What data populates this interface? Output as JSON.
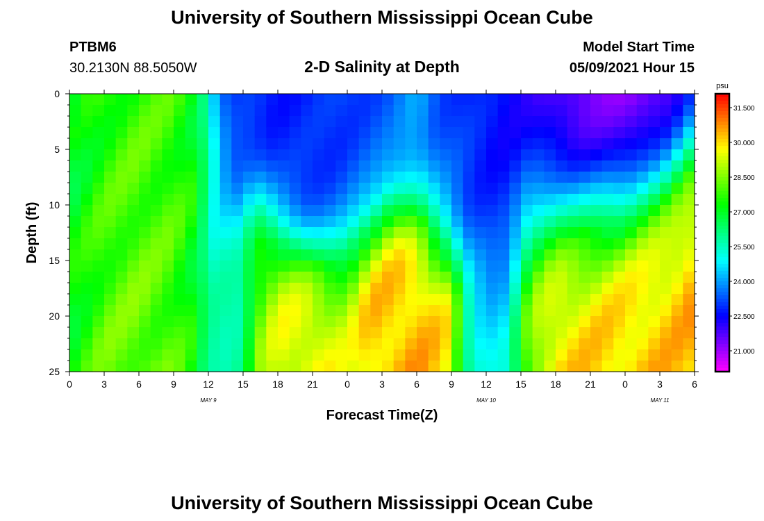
{
  "header": {
    "top_title": "University of Southern Mississippi Ocean Cube",
    "bottom_title": "University of Southern Mississippi Ocean Cube",
    "station_id": "PTBM6",
    "station_coords": "30.2130N  88.5050W",
    "plot_title": "2-D Salinity at Depth",
    "start_label": "Model Start Time",
    "start_value": "05/09/2021 Hour 15"
  },
  "chart_data": {
    "type": "heatmap",
    "title": "2-D Salinity at Depth",
    "xlabel": "Forecast Time(Z)",
    "ylabel": "Depth (ft)",
    "x_unit": "hours from 00Z May 9",
    "xlim": [
      0,
      54
    ],
    "ylim": [
      0,
      25
    ],
    "x_ticks": [
      0,
      3,
      6,
      9,
      12,
      15,
      18,
      21,
      24,
      27,
      30,
      33,
      36,
      39,
      42,
      45,
      48,
      51,
      54
    ],
    "x_tick_labels": [
      "0",
      "3",
      "6",
      "9",
      "12",
      "15",
      "18",
      "21",
      "0",
      "3",
      "6",
      "9",
      "12",
      "15",
      "18",
      "21",
      "0",
      "3",
      "6"
    ],
    "y_ticks": [
      0,
      5,
      10,
      15,
      20,
      25
    ],
    "y_tick_labels": [
      "0",
      "5",
      "10",
      "15",
      "20",
      "25"
    ],
    "date_labels": [
      {
        "x": 12,
        "text": "MAY 9"
      },
      {
        "x": 36,
        "text": "MAY 10"
      },
      {
        "x": 51,
        "text": "MAY 11"
      }
    ],
    "colorbar": {
      "unit": "psu",
      "min": 20.1,
      "max": 32.1,
      "tick_values": [
        31.5,
        30.0,
        28.5,
        27.0,
        25.5,
        24.0,
        22.5,
        21.0
      ],
      "tick_labels": [
        "31.500",
        "30.000",
        "28.500",
        "27.000",
        "25.500",
        "24.000",
        "22.500",
        "21.000"
      ]
    },
    "grid_steps": {
      "time_hours": 1,
      "depth_ft": 1
    },
    "top_layer": [
      [
        0,
        26.4
      ],
      [
        5,
        27.2
      ],
      [
        9,
        27.5
      ],
      [
        11,
        27.2
      ],
      [
        12,
        25.2
      ],
      [
        12.8,
        24.0
      ],
      [
        14,
        22.9
      ],
      [
        18,
        22.7
      ],
      [
        22,
        22.9
      ],
      [
        28,
        23.3
      ],
      [
        30,
        24.0
      ],
      [
        32,
        23.2
      ],
      [
        38,
        22.4
      ],
      [
        44,
        21.2
      ],
      [
        49,
        20.8
      ],
      [
        52,
        21.0
      ],
      [
        54,
        22.0
      ]
    ],
    "bottom_layer": [
      [
        0,
        27.7
      ],
      [
        3,
        28.9
      ],
      [
        6,
        29.0
      ],
      [
        9,
        28.3
      ],
      [
        10,
        27.6
      ],
      [
        11,
        27.0
      ],
      [
        12,
        26.3
      ],
      [
        13,
        25.8
      ],
      [
        14,
        25.7
      ],
      [
        15,
        26.0
      ],
      [
        16,
        28.0
      ],
      [
        18,
        29.4
      ],
      [
        21,
        29.8
      ],
      [
        24,
        29.1
      ],
      [
        26,
        30.2
      ],
      [
        30,
        30.4
      ],
      [
        33,
        29.9
      ],
      [
        34,
        26.8
      ],
      [
        35,
        25.4
      ],
      [
        37,
        25.0
      ],
      [
        38,
        25.4
      ],
      [
        39,
        27.5
      ],
      [
        40,
        29.0
      ],
      [
        42,
        30.0
      ],
      [
        48,
        30.2
      ],
      [
        52,
        30.2
      ],
      [
        54,
        30.4
      ]
    ],
    "halocline_depth_ft": [
      [
        0,
        14.0
      ],
      [
        12,
        14.0
      ],
      [
        13,
        10.0
      ],
      [
        16,
        10.0
      ],
      [
        18,
        12.5
      ],
      [
        21,
        14.5
      ],
      [
        23,
        14.5
      ],
      [
        26,
        12.0
      ],
      [
        28,
        10.0
      ],
      [
        30,
        11.0
      ],
      [
        33,
        14.0
      ],
      [
        36,
        16.5
      ],
      [
        37,
        16.5
      ],
      [
        39,
        12.0
      ],
      [
        42,
        11.0
      ],
      [
        48,
        10.0
      ],
      [
        51,
        8.0
      ],
      [
        54,
        5.0
      ]
    ],
    "halocline_thickness_ft": [
      [
        0,
        20
      ],
      [
        12,
        20
      ],
      [
        12.6,
        2.5
      ],
      [
        15,
        2.5
      ],
      [
        20,
        2.0
      ],
      [
        24,
        2.0
      ],
      [
        28,
        2.0
      ],
      [
        33,
        2.5
      ],
      [
        38,
        3.5
      ],
      [
        42,
        3.0
      ],
      [
        48,
        3.0
      ],
      [
        54,
        3.0
      ]
    ]
  }
}
